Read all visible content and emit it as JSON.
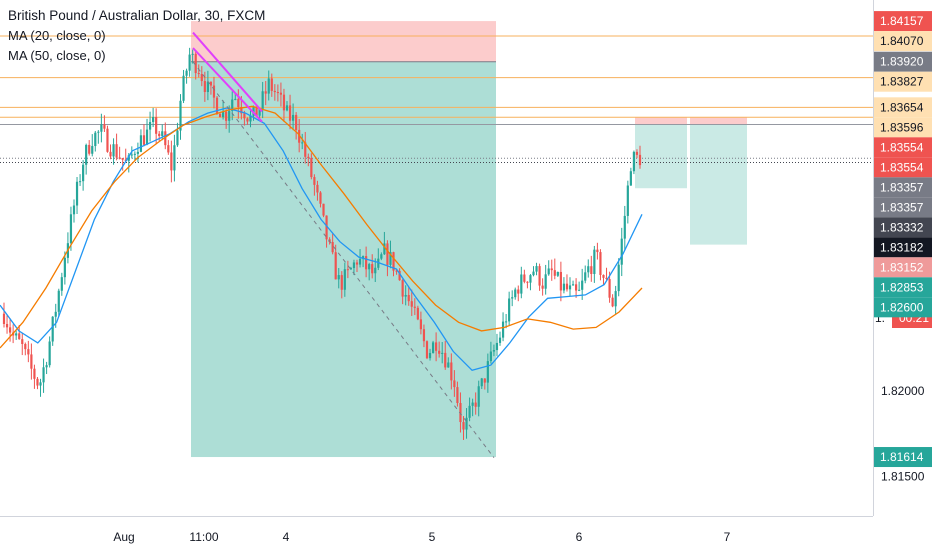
{
  "legend": {
    "title": "British Pound / Australian Dollar, 30, FXCM",
    "ma20": "MA (20, close, 0)",
    "ma50": "MA (50, close, 0)"
  },
  "colors": {
    "up": "#26a69a",
    "down": "#ef5350",
    "ma20": "#2196f3",
    "ma50": "#f57c00",
    "profit_zone": "#9fd8cf",
    "loss_zone": "#fbc3c3",
    "level_line": "#f7b15c",
    "drawing": "#e040fb"
  },
  "chart_data": {
    "type": "candlestick",
    "y_range": [
      1.8127,
      1.8428
    ],
    "x_ticks": [
      "Aug",
      "11:00",
      "4",
      "5",
      "6",
      "7"
    ],
    "y_ticks": [
      "1.82000",
      "1.81500"
    ],
    "price_labels": [
      {
        "text": "1.84157",
        "value": 1.84157,
        "bg": "#ef5350",
        "fg": "#ffffff"
      },
      {
        "text": "1.84070",
        "value": 1.8407,
        "bg": "#ffe0b2",
        "fg": "#131722"
      },
      {
        "text": "1.83920",
        "value": 1.8392,
        "bg": "#787b86",
        "fg": "#ffffff"
      },
      {
        "text": "1.83827",
        "value": 1.83827,
        "bg": "#ffe0b2",
        "fg": "#131722"
      },
      {
        "text": "1.83654",
        "value": 1.83654,
        "bg": "#ffe0b2",
        "fg": "#131722"
      },
      {
        "text": "1.83596",
        "value": 1.83596,
        "bg": "#ffe0b2",
        "fg": "#131722"
      },
      {
        "text": "1.83554",
        "value": 1.83554,
        "bg": "#ef5350",
        "fg": "#ffffff"
      },
      {
        "text": "1.83554",
        "value": 1.83554,
        "bg": "#ef5350",
        "fg": "#ffffff"
      },
      {
        "text": "1.83357",
        "value": 1.83357,
        "bg": "#787b86",
        "fg": "#ffffff"
      },
      {
        "text": "1.83357",
        "value": 1.83357,
        "bg": "#787b86",
        "fg": "#ffffff"
      },
      {
        "text": "1.83332",
        "value": 1.83332,
        "bg": "#434651",
        "fg": "#ffffff"
      },
      {
        "text": "1.83182",
        "value": 1.83182,
        "bg": "#131722",
        "fg": "#ffffff"
      },
      {
        "text": "1.83152",
        "value": 1.83152,
        "bg": "#ef9a9a",
        "fg": "#ffffff"
      },
      {
        "text": "1.",
        "value": 1.83,
        "bg": "#ffffff",
        "fg": "#131722"
      },
      {
        "text": "00:21",
        "value": 1.83,
        "bg": "#ef5350",
        "fg": "#ffffff"
      },
      {
        "text": "1.82853",
        "value": 1.82853,
        "bg": "#26a69a",
        "fg": "#ffffff"
      },
      {
        "text": "1.82600",
        "value": 1.826,
        "bg": "#26a69a",
        "fg": "#ffffff"
      },
      {
        "text": "1.81614",
        "value": 1.81614,
        "bg": "#26a69a",
        "fg": "#ffffff"
      }
    ],
    "levels": [
      1.8407,
      1.83827,
      1.83654,
      1.83596
    ],
    "positions": [
      {
        "entry": 1.8392,
        "stop": 1.84157,
        "target": 1.81614
      },
      {
        "entry": 1.83554,
        "stop": 1.83596,
        "target": 1.83182
      },
      {
        "entry": 1.83554,
        "stop": 1.83596,
        "target": 1.82853
      }
    ],
    "close_series": [
      1.8245,
      1.8232,
      1.8226,
      1.8213,
      1.8203,
      1.8224,
      1.8252,
      1.8283,
      1.831,
      1.8335,
      1.8348,
      1.8351,
      1.8343,
      1.8338,
      1.8331,
      1.8344,
      1.8349,
      1.8355,
      1.8346,
      1.833,
      1.837,
      1.8396,
      1.8389,
      1.8376,
      1.8368,
      1.836,
      1.8373,
      1.8365,
      1.8358,
      1.8366,
      1.8379,
      1.8372,
      1.8361,
      1.8357,
      1.8339,
      1.8322,
      1.8301,
      1.8279,
      1.8262,
      1.8268,
      1.8277,
      1.8272,
      1.8267,
      1.8281,
      1.8275,
      1.8262,
      1.825,
      1.8236,
      1.8222,
      1.823,
      1.8219,
      1.8205,
      1.8175,
      1.819,
      1.8202,
      1.8217,
      1.823,
      1.8246,
      1.826,
      1.8266,
      1.8271,
      1.8263,
      1.8269,
      1.8261,
      1.8258,
      1.8255,
      1.827,
      1.8278,
      1.8265,
      1.825,
      1.829,
      1.8335,
      1.8336
    ],
    "ma20_series": [
      1.825,
      1.8235,
      1.8228,
      1.824,
      1.827,
      1.83,
      1.8322,
      1.834,
      1.8345,
      1.835,
      1.8357,
      1.8362,
      1.8365,
      1.8362,
      1.8356,
      1.834,
      1.8318,
      1.83,
      1.8287,
      1.8278,
      1.8275,
      1.8271,
      1.8255,
      1.824,
      1.8223,
      1.8212,
      1.8215,
      1.8228,
      1.8243,
      1.8254,
      1.8255,
      1.8256,
      1.8262,
      1.828,
      1.8303
    ],
    "ma50_series": [
      1.8225,
      1.824,
      1.826,
      1.8283,
      1.8305,
      1.8322,
      1.8336,
      1.8346,
      1.8355,
      1.836,
      1.8364,
      1.8366,
      1.8362,
      1.835,
      1.8332,
      1.8315,
      1.8297,
      1.828,
      1.8264,
      1.825,
      1.824,
      1.8235,
      1.8237,
      1.8242,
      1.824,
      1.8236,
      1.8237,
      1.8246,
      1.826
    ]
  }
}
